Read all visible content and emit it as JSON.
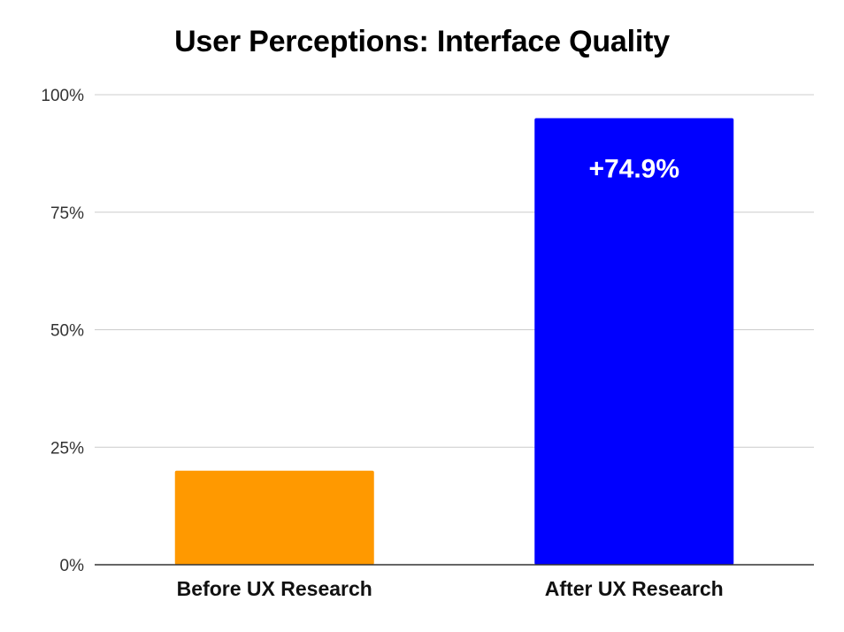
{
  "chart_data": {
    "type": "bar",
    "title": "User Perceptions: Interface Quality",
    "xlabel": "",
    "ylabel": "",
    "categories": [
      "Before UX Research",
      "After UX Research"
    ],
    "values": [
      20,
      95
    ],
    "bar_colors": [
      "#ff9900",
      "#0000ff"
    ],
    "data_labels": [
      "",
      "+74.9%"
    ],
    "ylim": [
      0,
      100
    ],
    "yticks": [
      0,
      25,
      50,
      75,
      100
    ],
    "ytick_labels": [
      "0%",
      "25%",
      "50%",
      "75%",
      "100%"
    ],
    "grid": true,
    "legend": "none"
  }
}
